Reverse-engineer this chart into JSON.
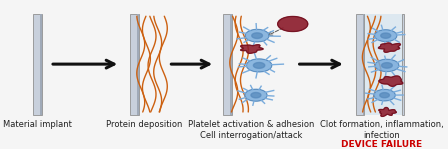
{
  "background_color": "#f5f5f5",
  "fig_bg": "#f5f5f5",
  "panel_color_light": "#c8d0dc",
  "panel_color_dark": "#a0aab8",
  "panel_edge": "#909090",
  "protein_color": "#cc6010",
  "platelet_color": "#7aacdc",
  "platelet_inner": "#5588bb",
  "clot_color": "#8b1a2a",
  "clot_edge": "#6a0f1e",
  "device_failure_color": "#cc0000",
  "label_fontsize": 6.0,
  "device_failure_text": "DEVICE FAILURE",
  "stage_labels": [
    "Material implant",
    "Protein deposition",
    "Platelet activation & adhesion\nCell interrogation/attack",
    "Clot formation, inflammation,\ninfection"
  ]
}
